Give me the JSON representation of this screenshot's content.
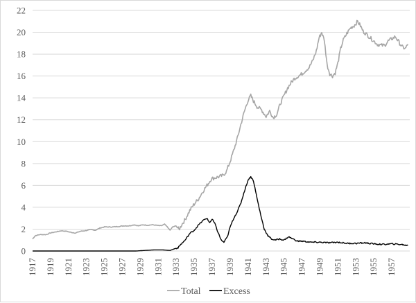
{
  "chart_data": {
    "type": "line",
    "title": "",
    "xlabel": "",
    "ylabel": "",
    "xlim": [
      1917,
      1959
    ],
    "ylim": [
      0,
      22
    ],
    "yticks": [
      0,
      2,
      4,
      6,
      8,
      10,
      12,
      14,
      16,
      18,
      20,
      22
    ],
    "xtick_labels": [
      "1917",
      "1919",
      "1921",
      "1923",
      "1925",
      "1927",
      "1929",
      "1931",
      "1933",
      "1935",
      "1937",
      "1939",
      "1941",
      "1943",
      "1945",
      "1947",
      "1949",
      "1951",
      "1953",
      "1955",
      "1957"
    ],
    "grid": "horizontal",
    "legend": "bottom",
    "series": [
      {
        "name": "Total",
        "color": "#a6a6a6",
        "points": [
          [
            1917.0,
            1.1
          ],
          [
            1917.3,
            1.4
          ],
          [
            1917.8,
            1.5
          ],
          [
            1918.5,
            1.5
          ],
          [
            1919.0,
            1.65
          ],
          [
            1919.6,
            1.75
          ],
          [
            1920.2,
            1.85
          ],
          [
            1920.8,
            1.8
          ],
          [
            1921.3,
            1.7
          ],
          [
            1921.8,
            1.65
          ],
          [
            1922.3,
            1.8
          ],
          [
            1922.8,
            1.85
          ],
          [
            1923.5,
            1.95
          ],
          [
            1924.0,
            1.9
          ],
          [
            1924.5,
            2.1
          ],
          [
            1925.0,
            2.2
          ],
          [
            1925.5,
            2.2
          ],
          [
            1926.0,
            2.2
          ],
          [
            1926.6,
            2.25
          ],
          [
            1927.2,
            2.3
          ],
          [
            1927.8,
            2.3
          ],
          [
            1928.3,
            2.4
          ],
          [
            1928.8,
            2.3
          ],
          [
            1929.3,
            2.4
          ],
          [
            1929.8,
            2.35
          ],
          [
            1930.3,
            2.4
          ],
          [
            1930.8,
            2.35
          ],
          [
            1931.3,
            2.3
          ],
          [
            1931.7,
            2.45
          ],
          [
            1932.0,
            2.2
          ],
          [
            1932.3,
            1.9
          ],
          [
            1932.6,
            2.2
          ],
          [
            1933.0,
            2.3
          ],
          [
            1933.3,
            1.95
          ],
          [
            1933.6,
            2.4
          ],
          [
            1934.0,
            2.9
          ],
          [
            1934.5,
            3.7
          ],
          [
            1935.0,
            4.3
          ],
          [
            1935.5,
            4.8
          ],
          [
            1936.0,
            5.5
          ],
          [
            1936.5,
            6.1
          ],
          [
            1936.9,
            6.6
          ],
          [
            1937.3,
            6.7
          ],
          [
            1937.8,
            6.8
          ],
          [
            1938.2,
            6.9
          ],
          [
            1938.6,
            7.3
          ],
          [
            1939.0,
            8.2
          ],
          [
            1939.4,
            9.2
          ],
          [
            1939.8,
            10.3
          ],
          [
            1940.2,
            11.6
          ],
          [
            1940.6,
            12.8
          ],
          [
            1941.0,
            13.8
          ],
          [
            1941.3,
            14.2
          ],
          [
            1941.6,
            13.7
          ],
          [
            1942.0,
            13.2
          ],
          [
            1942.5,
            12.9
          ],
          [
            1943.0,
            12.3
          ],
          [
            1943.4,
            12.8
          ],
          [
            1943.8,
            12.2
          ],
          [
            1944.2,
            12.5
          ],
          [
            1944.6,
            13.5
          ],
          [
            1945.0,
            14.2
          ],
          [
            1945.4,
            14.9
          ],
          [
            1945.8,
            15.4
          ],
          [
            1946.2,
            15.8
          ],
          [
            1946.6,
            16.0
          ],
          [
            1947.0,
            16.2
          ],
          [
            1947.4,
            16.5
          ],
          [
            1947.8,
            16.8
          ],
          [
            1948.2,
            17.4
          ],
          [
            1948.6,
            18.3
          ],
          [
            1948.9,
            19.5
          ],
          [
            1949.2,
            20.0
          ],
          [
            1949.5,
            19.2
          ],
          [
            1949.8,
            17.0
          ],
          [
            1950.1,
            16.2
          ],
          [
            1950.4,
            16.0
          ],
          [
            1950.7,
            16.3
          ],
          [
            1951.0,
            17.2
          ],
          [
            1951.3,
            18.5
          ],
          [
            1951.6,
            19.3
          ],
          [
            1952.0,
            19.9
          ],
          [
            1952.4,
            20.4
          ],
          [
            1952.8,
            20.6
          ],
          [
            1953.2,
            21.0
          ],
          [
            1953.5,
            20.6
          ],
          [
            1953.8,
            20.1
          ],
          [
            1954.2,
            19.8
          ],
          [
            1954.6,
            19.5
          ],
          [
            1955.0,
            19.2
          ],
          [
            1955.4,
            18.9
          ],
          [
            1955.8,
            18.8
          ],
          [
            1956.2,
            18.8
          ],
          [
            1956.6,
            19.2
          ],
          [
            1957.0,
            19.4
          ],
          [
            1957.4,
            19.6
          ],
          [
            1957.8,
            19.1
          ],
          [
            1958.1,
            18.7
          ],
          [
            1958.5,
            18.5
          ],
          [
            1958.8,
            18.9
          ]
        ]
      },
      {
        "name": "Excess",
        "color": "#000000",
        "points": [
          [
            1917.0,
            0.0
          ],
          [
            1920.0,
            0.0
          ],
          [
            1925.0,
            0.0
          ],
          [
            1928.5,
            0.0
          ],
          [
            1929.5,
            0.05
          ],
          [
            1930.5,
            0.1
          ],
          [
            1931.5,
            0.1
          ],
          [
            1932.3,
            0.05
          ],
          [
            1932.8,
            0.2
          ],
          [
            1933.2,
            0.3
          ],
          [
            1933.5,
            0.6
          ],
          [
            1934.0,
            1.0
          ],
          [
            1934.5,
            1.6
          ],
          [
            1935.0,
            1.9
          ],
          [
            1935.5,
            2.4
          ],
          [
            1936.0,
            2.8
          ],
          [
            1936.4,
            3.0
          ],
          [
            1936.7,
            2.6
          ],
          [
            1937.0,
            2.9
          ],
          [
            1937.3,
            2.5
          ],
          [
            1937.6,
            1.8
          ],
          [
            1938.0,
            1.0
          ],
          [
            1938.3,
            0.8
          ],
          [
            1938.7,
            1.3
          ],
          [
            1939.0,
            2.2
          ],
          [
            1939.4,
            3.0
          ],
          [
            1939.8,
            3.6
          ],
          [
            1940.2,
            4.4
          ],
          [
            1940.6,
            5.5
          ],
          [
            1941.0,
            6.5
          ],
          [
            1941.3,
            6.8
          ],
          [
            1941.6,
            6.4
          ],
          [
            1942.0,
            4.8
          ],
          [
            1942.4,
            3.3
          ],
          [
            1942.8,
            2.0
          ],
          [
            1943.2,
            1.4
          ],
          [
            1943.6,
            1.1
          ],
          [
            1944.0,
            1.0
          ],
          [
            1944.5,
            1.1
          ],
          [
            1945.0,
            1.0
          ],
          [
            1945.5,
            1.3
          ],
          [
            1946.0,
            1.1
          ],
          [
            1946.5,
            0.9
          ],
          [
            1947.0,
            0.9
          ],
          [
            1948.0,
            0.8
          ],
          [
            1949.0,
            0.8
          ],
          [
            1950.0,
            0.75
          ],
          [
            1951.0,
            0.8
          ],
          [
            1952.0,
            0.7
          ],
          [
            1953.0,
            0.7
          ],
          [
            1954.0,
            0.75
          ],
          [
            1955.0,
            0.65
          ],
          [
            1956.0,
            0.6
          ],
          [
            1957.0,
            0.65
          ],
          [
            1958.0,
            0.6
          ],
          [
            1958.8,
            0.5
          ]
        ]
      }
    ]
  }
}
